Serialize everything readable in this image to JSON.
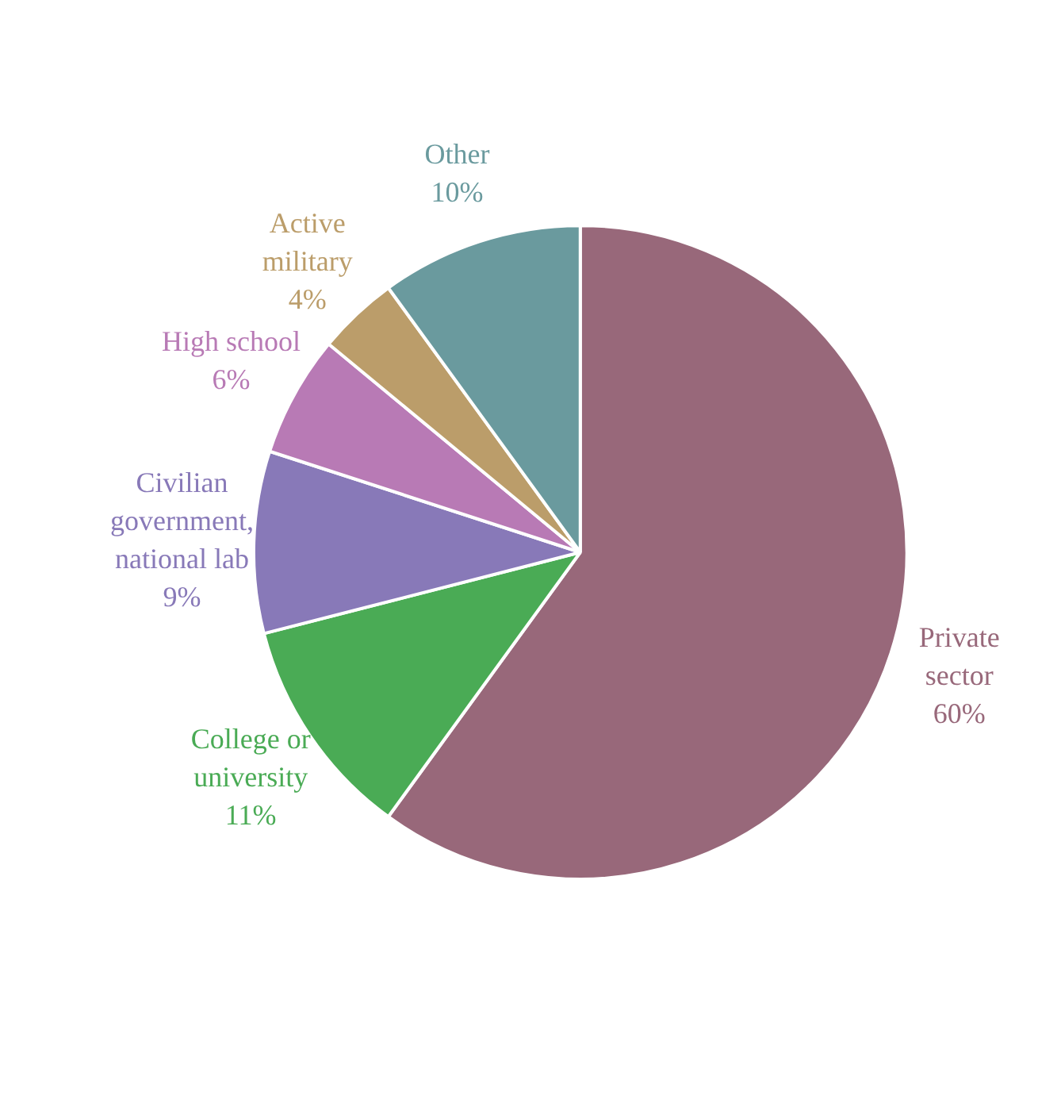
{
  "chart_data": {
    "type": "pie",
    "categories": [
      "Private sector",
      "College or university",
      "Civilian government, national lab",
      "High school",
      "Active military",
      "Other"
    ],
    "values": [
      60,
      11,
      9,
      6,
      4,
      10
    ],
    "value_labels": [
      "60%",
      "11%",
      "9%",
      "6%",
      "4%",
      "10%"
    ],
    "colors": [
      "#98687a",
      "#4aab55",
      "#8879b8",
      "#b87ab5",
      "#bb9d6a",
      "#6a9a9e"
    ]
  }
}
